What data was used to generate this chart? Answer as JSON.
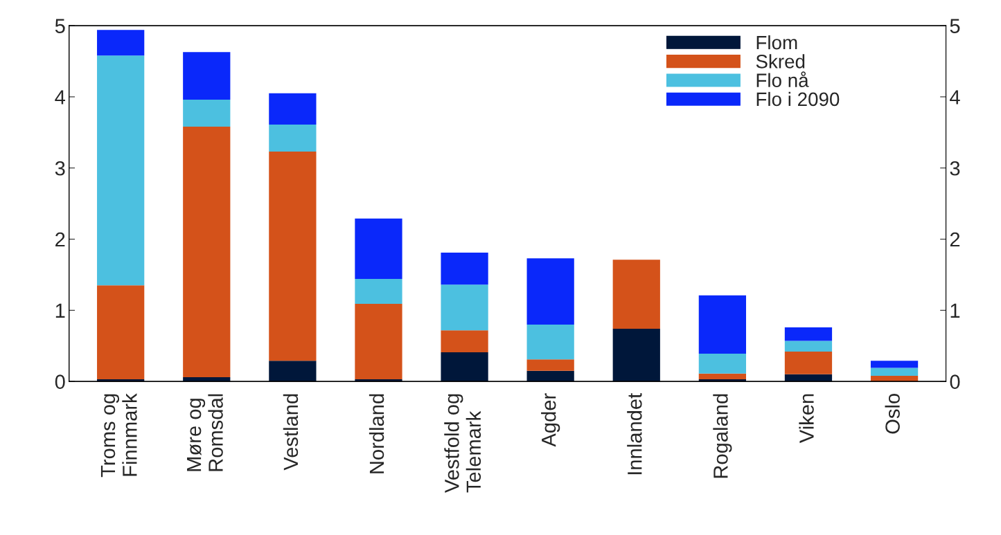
{
  "chart_data": {
    "type": "bar",
    "stacked": true,
    "categories": [
      "Troms og\nFinnmark",
      "Møre og\nRomsdal",
      "Vestland",
      "Nordland",
      "Vestfold og\nTelemark",
      "Agder",
      "Innlandet",
      "Rogaland",
      "Viken",
      "Oslo"
    ],
    "series": [
      {
        "name": "Flom",
        "color": "#00173a",
        "values": [
          0.03,
          0.06,
          0.29,
          0.03,
          0.41,
          0.15,
          0.74,
          0.03,
          0.1,
          0.0
        ]
      },
      {
        "name": "Skred",
        "color": "#d4521a",
        "values": [
          1.32,
          3.52,
          2.94,
          1.06,
          0.31,
          0.16,
          0.97,
          0.08,
          0.32,
          0.08
        ]
      },
      {
        "name": "Flo nå",
        "color": "#4cc0e0",
        "values": [
          3.23,
          0.38,
          0.38,
          0.35,
          0.64,
          0.49,
          0.0,
          0.28,
          0.15,
          0.11
        ]
      },
      {
        "name": "Flo i 2090",
        "color": "#0a28fa",
        "values": [
          0.36,
          0.67,
          0.44,
          0.85,
          0.45,
          0.93,
          0.0,
          0.82,
          0.19,
          0.1
        ]
      }
    ],
    "ylim": [
      0,
      5
    ],
    "yticks": [
      0,
      1,
      2,
      3,
      4,
      5
    ],
    "y2lim": [
      0,
      5
    ],
    "y2ticks": [
      0,
      1,
      2,
      3,
      4,
      5
    ],
    "grid": false,
    "legend": "top right"
  }
}
